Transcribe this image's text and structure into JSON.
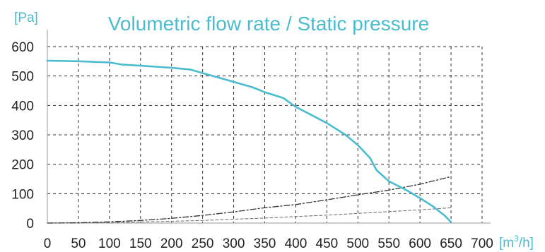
{
  "chart_data": {
    "type": "line",
    "title": "Volumetric flow rate / Static pressure",
    "ylabel": "[Pa]",
    "xlabel_base": "[m",
    "xlabel_sup": "3",
    "xlabel_tail": "/h]",
    "xlim": [
      0,
      700
    ],
    "ylim": [
      0,
      600
    ],
    "x_ticks": [
      0,
      50,
      100,
      150,
      200,
      250,
      300,
      350,
      400,
      450,
      500,
      550,
      600,
      650,
      700
    ],
    "y_ticks": [
      0,
      100,
      200,
      300,
      400,
      500,
      600
    ],
    "grid": true,
    "legend": "none",
    "colors": {
      "accent": "#4bbcd0",
      "grid": "#333333",
      "axis": "#999999",
      "text": "#222222",
      "system_curve_1": "#333333",
      "system_curve_2": "#777777"
    },
    "series": [
      {
        "style": "solid",
        "x": [
          0,
          50,
          100,
          120,
          150,
          200,
          230,
          250,
          300,
          330,
          350,
          380,
          400,
          450,
          480,
          500,
          520,
          530,
          550,
          580,
          600,
          620,
          640,
          650
        ],
        "values": [
          552,
          550,
          546,
          539,
          535,
          528,
          522,
          510,
          480,
          462,
          445,
          425,
          395,
          340,
          300,
          265,
          220,
          180,
          142,
          110,
          85,
          58,
          25,
          3
        ]
      },
      {
        "style": "dash-dot",
        "x": [
          0,
          50,
          100,
          150,
          200,
          250,
          300,
          350,
          400,
          450,
          500,
          550,
          600,
          650
        ],
        "values": [
          0,
          1,
          4,
          9,
          16,
          26,
          38,
          52,
          63,
          79,
          96,
          112,
          132,
          158
        ]
      },
      {
        "style": "dashed",
        "x": [
          0,
          50,
          100,
          150,
          200,
          250,
          300,
          350,
          400,
          450,
          500,
          550,
          600,
          650
        ],
        "values": [
          0,
          0.5,
          1.5,
          3.5,
          6,
          9,
          13,
          17,
          22,
          27,
          33,
          39,
          45,
          52
        ]
      }
    ]
  }
}
